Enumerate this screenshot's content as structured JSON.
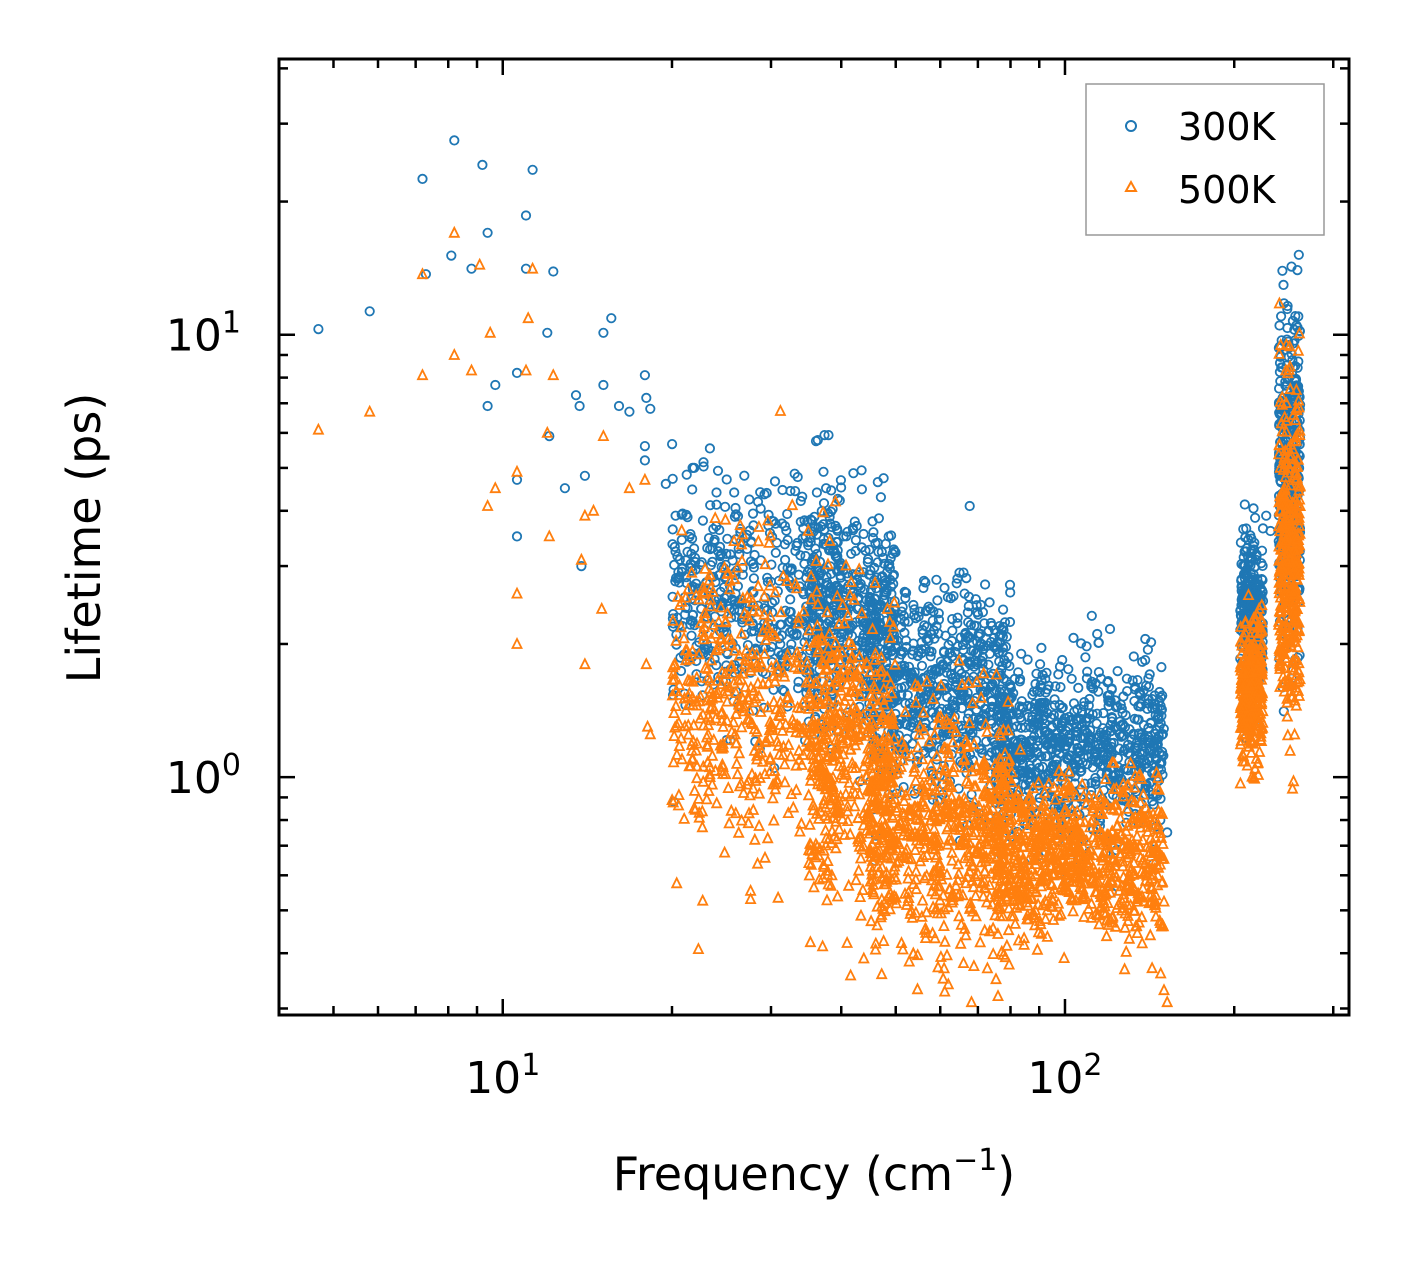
{
  "chart_data": {
    "type": "scatter",
    "title": "",
    "xlabel_main": "Frequency (cm",
    "xlabel_sup": "−1",
    "xlabel_end": ")",
    "ylabel": "Lifetime (ps)",
    "xscale": "log",
    "yscale": "log",
    "xlim": [
      4.0,
      320.0
    ],
    "ylim": [
      0.29,
      42.0
    ],
    "x_ticks": [
      {
        "value": 10,
        "base": "10",
        "exp": "1"
      },
      {
        "value": 100,
        "base": "10",
        "exp": "2"
      }
    ],
    "y_ticks": [
      {
        "value": 1,
        "base": "10",
        "exp": "0"
      },
      {
        "value": 10,
        "base": "10",
        "exp": "1"
      }
    ],
    "legend_position": "top-right",
    "series": [
      {
        "name": "300K",
        "marker": "circle",
        "color": "#1f77b4",
        "points": [
          [
            4.7,
            10.3
          ],
          [
            5.8,
            11.3
          ],
          [
            7.2,
            22.5
          ],
          [
            8.2,
            27.5
          ],
          [
            9.2,
            24.2
          ],
          [
            11.3,
            23.6
          ],
          [
            11.0,
            18.6
          ],
          [
            9.4,
            17.0
          ],
          [
            8.1,
            15.1
          ],
          [
            8.8,
            14.1
          ],
          [
            7.3,
            13.7
          ],
          [
            11.0,
            14.1
          ],
          [
            12.3,
            13.9
          ],
          [
            15.6,
            10.9
          ],
          [
            12.0,
            10.1
          ],
          [
            15.1,
            10.1
          ],
          [
            10.6,
            8.2
          ],
          [
            9.7,
            7.7
          ],
          [
            9.4,
            6.9
          ],
          [
            13.5,
            7.3
          ],
          [
            13.7,
            6.9
          ],
          [
            16.1,
            6.9
          ],
          [
            17.9,
            8.1
          ],
          [
            15.1,
            7.7
          ],
          [
            18.0,
            7.2
          ],
          [
            18.3,
            6.8
          ],
          [
            16.8,
            6.7
          ],
          [
            12.1,
            5.9
          ],
          [
            17.9,
            5.6
          ],
          [
            17.9,
            5.2
          ],
          [
            21.9,
            5.0
          ],
          [
            19.5,
            4.6
          ],
          [
            10.6,
            4.7
          ],
          [
            14.0,
            4.8
          ],
          [
            12.9,
            4.5
          ],
          [
            24.0,
            4.4
          ],
          [
            25.8,
            4.4
          ],
          [
            10.6,
            3.5
          ],
          [
            13.8,
            3.0
          ],
          [
            20.3,
            3.9
          ],
          [
            22.7,
            3.8
          ],
          [
            37.2,
            4.9
          ],
          [
            36.2,
            4.4
          ],
          [
            37.6,
            4.5
          ],
          [
            67.7,
            4.1
          ],
          [
            39.2,
            3.4
          ],
          [
            40.4,
            3.5
          ],
          [
            48.5,
            3.0
          ],
          [
            66.0,
            2.9
          ],
          [
            66.3,
            2.6
          ],
          [
            73.5,
            1.9
          ],
          [
            90.3,
            1.8
          ],
          [
            83.6,
            1.9
          ],
          [
            141.0,
            1.6
          ],
          [
            140.0,
            1.2
          ],
          [
            146.0,
            1.0
          ],
          [
            152.0,
            0.75
          ],
          [
            228.0,
            3.9
          ],
          [
            232.0,
            3.6
          ],
          [
            259.0,
            14.0
          ],
          [
            260.0,
            11.0
          ],
          [
            258.0,
            10.5
          ],
          [
            256.0,
            9.7
          ],
          [
            260.0,
            8.7
          ]
        ],
        "clusters": [
          {
            "x_range": [
              20,
              40
            ],
            "y_center": 2.5,
            "y_spread": 1.35,
            "count": 520
          },
          {
            "x_range": [
              35,
              50
            ],
            "y_center": 2.3,
            "y_spread": 1.35,
            "count": 420
          },
          {
            "x_range": [
              45,
              80
            ],
            "y_center": 1.55,
            "y_spread": 1.3,
            "count": 650
          },
          {
            "x_range": [
              75,
              150
            ],
            "y_center": 1.15,
            "y_spread": 1.25,
            "count": 800
          },
          {
            "x_range": [
              205,
              225
            ],
            "y_center": 2.4,
            "y_spread": 1.22,
            "count": 300
          },
          {
            "x_range": [
              240,
              262
            ],
            "y_center": 4.8,
            "y_spread": 1.55,
            "count": 380
          }
        ]
      },
      {
        "name": "500K",
        "marker": "triangle",
        "color": "#ff7f0e",
        "points": [
          [
            4.7,
            6.1
          ],
          [
            5.8,
            6.7
          ],
          [
            7.2,
            8.1
          ],
          [
            7.2,
            13.7
          ],
          [
            8.2,
            17.0
          ],
          [
            9.1,
            14.4
          ],
          [
            11.3,
            14.1
          ],
          [
            9.5,
            10.1
          ],
          [
            11.1,
            10.9
          ],
          [
            8.2,
            9.0
          ],
          [
            8.8,
            8.3
          ],
          [
            11.0,
            8.3
          ],
          [
            12.3,
            8.1
          ],
          [
            12.0,
            6.0
          ],
          [
            15.1,
            5.9
          ],
          [
            10.6,
            4.9
          ],
          [
            9.7,
            4.5
          ],
          [
            9.4,
            4.1
          ],
          [
            10.6,
            2.6
          ],
          [
            10.6,
            2.0
          ],
          [
            12.1,
            3.5
          ],
          [
            13.8,
            3.1
          ],
          [
            14.5,
            4.0
          ],
          [
            14.0,
            3.9
          ],
          [
            17.9,
            4.7
          ],
          [
            16.8,
            4.5
          ],
          [
            14.0,
            1.8
          ],
          [
            15.0,
            2.4
          ],
          [
            18.0,
            1.8
          ],
          [
            18.1,
            1.3
          ],
          [
            18.3,
            1.25
          ],
          [
            27.6,
            0.53
          ],
          [
            66.0,
            0.38
          ],
          [
            68.2,
            0.31
          ],
          [
            76.0,
            0.32
          ],
          [
            62.0,
            0.34
          ],
          [
            148.0,
            0.36
          ],
          [
            150.0,
            0.33
          ],
          [
            152.0,
            0.31
          ],
          [
            260.0,
            9.2
          ],
          [
            258.0,
            7.5
          ]
        ],
        "clusters": [
          {
            "x_range": [
              20,
              40
            ],
            "y_center": 1.45,
            "y_spread": 1.5,
            "count": 520
          },
          {
            "x_range": [
              35,
              50
            ],
            "y_center": 1.1,
            "y_spread": 1.5,
            "count": 420
          },
          {
            "x_range": [
              45,
              80
            ],
            "y_center": 0.75,
            "y_spread": 1.35,
            "count": 650
          },
          {
            "x_range": [
              75,
              150
            ],
            "y_center": 0.66,
            "y_spread": 1.22,
            "count": 800
          },
          {
            "x_range": [
              205,
              225
            ],
            "y_center": 1.55,
            "y_spread": 1.2,
            "count": 300
          },
          {
            "x_range": [
              240,
              262
            ],
            "y_center": 3.2,
            "y_spread": 1.55,
            "count": 380
          }
        ]
      }
    ]
  }
}
